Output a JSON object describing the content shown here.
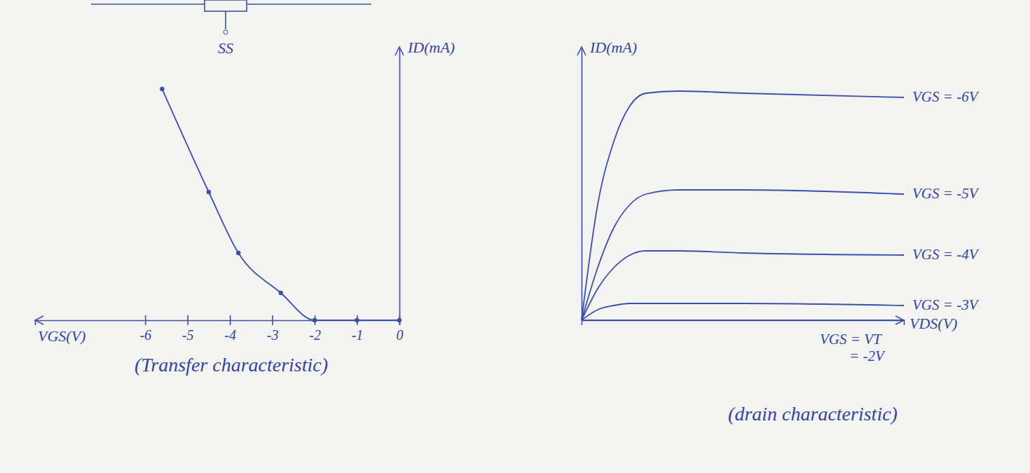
{
  "chart_data": [
    {
      "type": "line",
      "title": "(Transfer characteristic)",
      "x_label": "VGS(V)",
      "y_label": "ID(mA)",
      "x": [
        0,
        -1,
        -2,
        -2.8,
        -3.8,
        -4.5,
        -5.6
      ],
      "values": [
        0,
        0,
        0,
        1.3,
        3.2,
        6.1,
        11
      ],
      "color": "#3e4fa6",
      "marker": "circle",
      "xlim": [
        -8.6,
        0
      ],
      "xticks": [
        -6,
        -5,
        -4,
        -3,
        -2,
        -1,
        0
      ],
      "ylim": [
        0,
        13
      ],
      "yticks": [],
      "tick_labels": "x",
      "annotations": [
        {
          "text": "SS"
        }
      ]
    },
    {
      "type": "line",
      "title": "(drain characteristic)",
      "x_label": "VDS(V)",
      "y_label": "ID(mA)",
      "x": [
        0,
        0.5,
        1,
        1.5,
        2,
        3,
        5,
        10
      ],
      "series": [
        {
          "name": "VGS = -6V",
          "color": "#3e4fa6",
          "values": [
            0,
            5.5,
            8.5,
            10.2,
            10.8,
            10.9,
            10.8,
            10.6
          ]
        },
        {
          "name": "VGS = -5V",
          "color": "#3e4fa6",
          "values": [
            0,
            2.5,
            4.4,
            5.5,
            6.0,
            6.2,
            6.2,
            6.0
          ]
        },
        {
          "name": "VGS = -4V",
          "color": "#3e4fa6",
          "values": [
            0,
            1.5,
            2.5,
            3.1,
            3.3,
            3.3,
            3.2,
            3.1
          ]
        },
        {
          "name": "VGS = -3V",
          "color": "#3e4fa6",
          "values": [
            0,
            0.5,
            0.7,
            0.8,
            0.8,
            0.8,
            0.8,
            0.7
          ]
        },
        {
          "name": "VGS = VT = -2V",
          "color": "#3e4fa6",
          "values": [
            0,
            0,
            0,
            0,
            0,
            0,
            0,
            0
          ]
        }
      ],
      "xlim": [
        0,
        10
      ],
      "xticks": [],
      "ylim": [
        0,
        13
      ],
      "yticks": [],
      "tick_labels": false
    }
  ]
}
